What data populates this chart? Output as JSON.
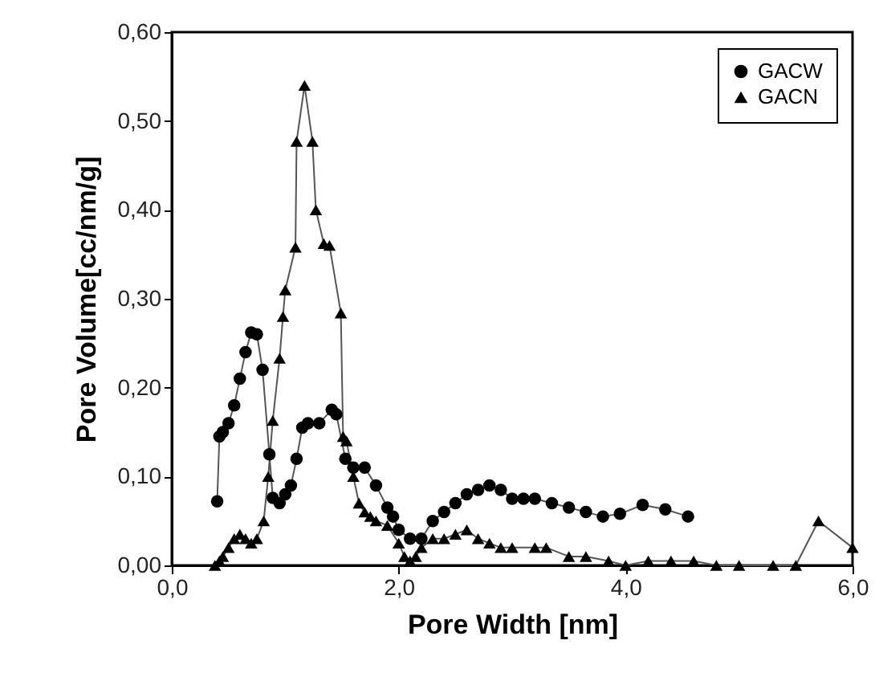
{
  "chart_data": {
    "type": "line",
    "xlabel": "Pore Width [nm]",
    "ylabel": "Pore  Volume[cc/nm/g]",
    "xlim": [
      0,
      6
    ],
    "ylim": [
      0,
      0.6
    ],
    "xticks": [
      {
        "value": 0,
        "label": "0,0"
      },
      {
        "value": 2,
        "label": "2,0"
      },
      {
        "value": 4,
        "label": "4,0"
      },
      {
        "value": 6,
        "label": "6,0"
      }
    ],
    "yticks": [
      {
        "value": 0,
        "label": "0,00"
      },
      {
        "value": 0.1,
        "label": "0,10"
      },
      {
        "value": 0.2,
        "label": "0,20"
      },
      {
        "value": 0.3,
        "label": "0,30"
      },
      {
        "value": 0.4,
        "label": "0,40"
      },
      {
        "value": 0.5,
        "label": "0,50"
      },
      {
        "value": 0.6,
        "label": "0,60"
      }
    ],
    "grid": false,
    "legend": "top right",
    "series": [
      {
        "name": "GACW",
        "color": "#000000",
        "marker": "circle",
        "x": [
          0.4,
          0.42,
          0.45,
          0.5,
          0.55,
          0.6,
          0.65,
          0.7,
          0.75,
          0.8,
          0.86,
          0.89,
          0.95,
          1.0,
          1.05,
          1.1,
          1.15,
          1.2,
          1.3,
          1.41,
          1.45,
          1.53,
          1.6,
          1.7,
          1.8,
          1.9,
          1.95,
          2.0,
          2.1,
          2.2,
          2.3,
          2.4,
          2.5,
          2.6,
          2.7,
          2.8,
          2.9,
          3.0,
          3.1,
          3.2,
          3.35,
          3.5,
          3.65,
          3.8,
          3.95,
          4.15,
          4.35,
          4.55
        ],
        "values": [
          0.072,
          0.145,
          0.15,
          0.16,
          0.18,
          0.21,
          0.24,
          0.262,
          0.26,
          0.22,
          0.125,
          0.076,
          0.07,
          0.08,
          0.09,
          0.12,
          0.155,
          0.16,
          0.16,
          0.175,
          0.17,
          0.12,
          0.11,
          0.11,
          0.09,
          0.065,
          0.055,
          0.04,
          0.03,
          0.03,
          0.05,
          0.06,
          0.07,
          0.08,
          0.085,
          0.09,
          0.085,
          0.075,
          0.075,
          0.075,
          0.07,
          0.065,
          0.06,
          0.055,
          0.058,
          0.068,
          0.063,
          0.055
        ]
      },
      {
        "name": "GACN",
        "color": "#000000",
        "marker": "triangle",
        "x": [
          0.38,
          0.42,
          0.45,
          0.5,
          0.55,
          0.6,
          0.65,
          0.7,
          0.75,
          0.81,
          0.85,
          0.89,
          0.95,
          0.98,
          1.0,
          1.09,
          1.1,
          1.17,
          1.24,
          1.27,
          1.34,
          1.39,
          1.49,
          1.51,
          1.54,
          1.6,
          1.65,
          1.7,
          1.75,
          1.8,
          1.9,
          2.0,
          2.05,
          2.1,
          2.15,
          2.2,
          2.3,
          2.4,
          2.5,
          2.6,
          2.7,
          2.8,
          2.9,
          3.0,
          3.2,
          3.3,
          3.5,
          3.65,
          3.85,
          4.0,
          4.2,
          4.4,
          4.6,
          4.8,
          5.0,
          5.3,
          5.5,
          5.7,
          6.0
        ],
        "values": [
          0.0,
          0.005,
          0.01,
          0.02,
          0.03,
          0.035,
          0.03,
          0.025,
          0.03,
          0.05,
          0.1,
          0.163,
          0.233,
          0.28,
          0.31,
          0.358,
          0.477,
          0.54,
          0.477,
          0.4,
          0.362,
          0.36,
          0.284,
          0.145,
          0.14,
          0.1,
          0.07,
          0.06,
          0.055,
          0.05,
          0.045,
          0.025,
          0.01,
          0.005,
          0.01,
          0.02,
          0.03,
          0.03,
          0.035,
          0.04,
          0.03,
          0.025,
          0.02,
          0.02,
          0.02,
          0.02,
          0.01,
          0.01,
          0.005,
          0.0,
          0.005,
          0.005,
          0.005,
          0.0,
          0.0,
          0.0,
          0.0,
          0.05,
          0.02
        ]
      }
    ]
  }
}
